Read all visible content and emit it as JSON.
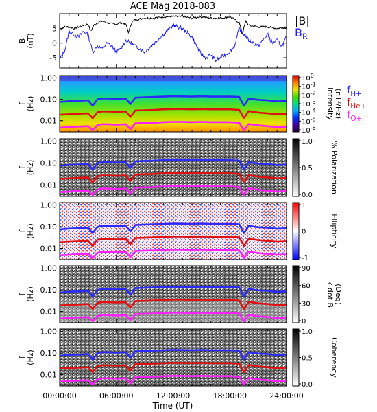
{
  "title": "ACE Mag 2018-083",
  "x_axis": {
    "label": "Time (UT)",
    "ticks": [
      "00:00:00",
      "06:00:00",
      "12:00:00",
      "18:00:00",
      "24:00:00"
    ]
  },
  "panels": [
    {
      "id": "mag",
      "ylabel_main": "B",
      "ylabel_sub": "(nT)",
      "yticks": [
        "5",
        "0",
        "-5"
      ],
      "legend": [
        {
          "main": "|B|",
          "sub": "",
          "color": "#000000"
        },
        {
          "main": "B",
          "sub": "R",
          "color": "#1a1aff"
        }
      ]
    },
    {
      "id": "intensity",
      "ylabel_main": "f",
      "ylabel_sub": "(Hz)",
      "yticks": [
        "1.00",
        "0.10",
        "0.01"
      ],
      "colorbar": {
        "type": "rainbow",
        "ticks": [
          {
            "base": "10",
            "exp": "0"
          },
          {
            "base": "10",
            "exp": "-1"
          },
          {
            "base": "10",
            "exp": "-2"
          },
          {
            "base": "10",
            "exp": "-3"
          },
          {
            "base": "10",
            "exp": "-4"
          },
          {
            "base": "10",
            "exp": "-5"
          },
          {
            "base": "10",
            "exp": "-6"
          }
        ],
        "label_line1": "Intensity",
        "label_line2": "(nT²/Hz)"
      },
      "legend": [
        {
          "main": "f",
          "sub": "H+",
          "color": "#2a2aff"
        },
        {
          "main": "f",
          "sub": "He+",
          "color": "#e01010"
        },
        {
          "main": "f",
          "sub": "O+",
          "color": "#ff20ff"
        }
      ]
    },
    {
      "id": "polarization",
      "ylabel_main": "f",
      "ylabel_sub": "(Hz)",
      "yticks": [
        "1.00",
        "0.10",
        "0.01"
      ],
      "colorbar": {
        "type": "gray",
        "ticks": [
          "1.0",
          "0.5",
          "0.0"
        ],
        "label_line1": "% Polarization",
        "label_line2": ""
      }
    },
    {
      "id": "ellipticity",
      "ylabel_main": "f",
      "ylabel_sub": "(Hz)",
      "yticks": [
        "1.00",
        "0.10",
        "0.01"
      ],
      "colorbar": {
        "type": "redblue",
        "ticks": [
          "1",
          "0",
          "-1"
        ],
        "label_line1": "Ellipticity",
        "label_line2": ""
      }
    },
    {
      "id": "kdotb",
      "ylabel_main": "f",
      "ylabel_sub": "(Hz)",
      "yticks": [
        "1.00",
        "0.10",
        "0.01"
      ],
      "colorbar": {
        "type": "gray",
        "ticks": [
          "90",
          "60",
          "30",
          "0"
        ],
        "label_line1": "k dot B",
        "label_line2": "(Deg)"
      }
    },
    {
      "id": "coherency",
      "ylabel_main": "f",
      "ylabel_sub": "(Hz)",
      "yticks": [
        "1.00",
        "0.10",
        "0.01"
      ],
      "colorbar": {
        "type": "gray",
        "ticks": [
          "1.0",
          "0.5",
          "0.0"
        ],
        "label_line1": "Coherency",
        "label_line2": ""
      }
    }
  ],
  "chart_data": [
    {
      "type": "line",
      "panel": "mag",
      "x_range_hours": [
        0,
        24
      ],
      "ylim": [
        -8.5,
        10
      ],
      "series": [
        {
          "name": "|B|",
          "color": "#000000",
          "x": [
            0,
            0.5,
            1,
            1.5,
            2,
            2.5,
            3,
            3.3,
            3.6,
            4,
            4.5,
            5,
            5.5,
            6,
            6.5,
            7,
            7.3,
            7.6,
            8,
            9,
            10,
            11,
            12,
            13,
            14,
            15,
            16,
            17,
            18,
            18.5,
            19,
            19.3,
            19.7,
            20,
            21,
            22,
            23,
            24
          ],
          "y": [
            4.5,
            5.5,
            5.5,
            5,
            5.5,
            6,
            6.5,
            4,
            6,
            7,
            7.5,
            7,
            6.5,
            6.5,
            7,
            6.5,
            3.5,
            7,
            8,
            8.5,
            8.5,
            9,
            9,
            9,
            8.5,
            9,
            8.5,
            8.5,
            9,
            8,
            7,
            3,
            7.5,
            6,
            5.5,
            5.5,
            5,
            5.5
          ]
        },
        {
          "name": "B_R",
          "color": "#1a1aff",
          "x": [
            0,
            0.3,
            0.6,
            1,
            1.5,
            2,
            2.5,
            3,
            3.5,
            4,
            4.5,
            5,
            5.5,
            6,
            6.5,
            7,
            7.5,
            8,
            8.5,
            9,
            10,
            11,
            12,
            13,
            14,
            14.5,
            15,
            15.5,
            16,
            16.5,
            17,
            17.5,
            18,
            18.5,
            19,
            19.5,
            20,
            21,
            22,
            22.5,
            23,
            23.5,
            24
          ],
          "y": [
            -5.5,
            -4,
            -2,
            4,
            3,
            2,
            4,
            3,
            -3,
            -1,
            -2,
            0,
            -1,
            -3,
            -2,
            1,
            0,
            -1,
            -2,
            -3,
            0,
            3,
            6,
            5,
            2,
            -1,
            -4,
            -5,
            -4,
            -6,
            -5,
            -4,
            -3,
            -1,
            5,
            3,
            1,
            -1,
            3,
            0,
            1,
            -1,
            2
          ]
        }
      ]
    },
    {
      "type": "line",
      "panel": "gyrofrequency_overlays",
      "x_range_hours": [
        0,
        24
      ],
      "y_scale": "log",
      "ylim": [
        0.003,
        1.3
      ],
      "note_x": "hours",
      "series": [
        {
          "name": "f_H+",
          "color": "#2a2aff",
          "x": [
            0,
            1,
            2,
            3,
            3.5,
            4,
            4.5,
            5,
            6,
            7,
            7.5,
            8,
            9,
            10,
            11,
            12,
            13,
            14,
            15,
            16,
            17,
            18,
            19,
            19.5,
            20,
            21,
            22,
            23,
            24
          ],
          "y": [
            0.075,
            0.082,
            0.085,
            0.09,
            0.05,
            0.1,
            0.11,
            0.11,
            0.105,
            0.11,
            0.06,
            0.12,
            0.125,
            0.13,
            0.135,
            0.14,
            0.138,
            0.135,
            0.14,
            0.135,
            0.135,
            0.135,
            0.13,
            0.05,
            0.11,
            0.095,
            0.09,
            0.08,
            0.085
          ]
        },
        {
          "name": "f_He+",
          "color": "#e01010",
          "x": [
            0,
            1,
            2,
            3,
            3.5,
            4,
            4.5,
            5,
            6,
            7,
            7.5,
            8,
            9,
            10,
            11,
            12,
            13,
            14,
            15,
            16,
            17,
            18,
            19,
            19.5,
            20,
            21,
            22,
            23,
            24
          ],
          "y": [
            0.019,
            0.02,
            0.021,
            0.022,
            0.013,
            0.025,
            0.027,
            0.027,
            0.026,
            0.027,
            0.015,
            0.03,
            0.031,
            0.032,
            0.034,
            0.035,
            0.035,
            0.034,
            0.035,
            0.034,
            0.034,
            0.034,
            0.032,
            0.013,
            0.028,
            0.024,
            0.022,
            0.02,
            0.021
          ]
        },
        {
          "name": "f_O+",
          "color": "#ff20ff",
          "x": [
            0,
            1,
            2,
            3,
            3.5,
            4,
            4.5,
            5,
            6,
            7,
            7.5,
            8,
            9,
            10,
            11,
            12,
            13,
            14,
            15,
            16,
            17,
            18,
            19,
            19.5,
            20,
            21,
            22,
            23,
            24
          ],
          "y": [
            0.0047,
            0.005,
            0.0053,
            0.0055,
            0.0035,
            0.0062,
            0.0068,
            0.0068,
            0.0065,
            0.0068,
            0.004,
            0.0075,
            0.0078,
            0.008,
            0.0085,
            0.0088,
            0.0087,
            0.0085,
            0.0088,
            0.0085,
            0.0085,
            0.0085,
            0.008,
            0.0035,
            0.007,
            0.006,
            0.0055,
            0.005,
            0.0052
          ]
        }
      ]
    },
    {
      "type": "heatmap",
      "panel": "intensity",
      "y_scale": "log",
      "colormap": "rainbow"
    },
    {
      "type": "heatmap",
      "panel": "polarization",
      "y_scale": "log",
      "colormap": "gray",
      "zlim": [
        0,
        1
      ]
    },
    {
      "type": "heatmap",
      "panel": "ellipticity",
      "y_scale": "log",
      "colormap": "red-white-blue",
      "zlim": [
        -1,
        1
      ]
    },
    {
      "type": "heatmap",
      "panel": "kdotb",
      "y_scale": "log",
      "colormap": "gray",
      "zlim": [
        0,
        90
      ]
    },
    {
      "type": "heatmap",
      "panel": "coherency",
      "y_scale": "log",
      "colormap": "gray",
      "zlim": [
        0,
        1
      ]
    }
  ]
}
